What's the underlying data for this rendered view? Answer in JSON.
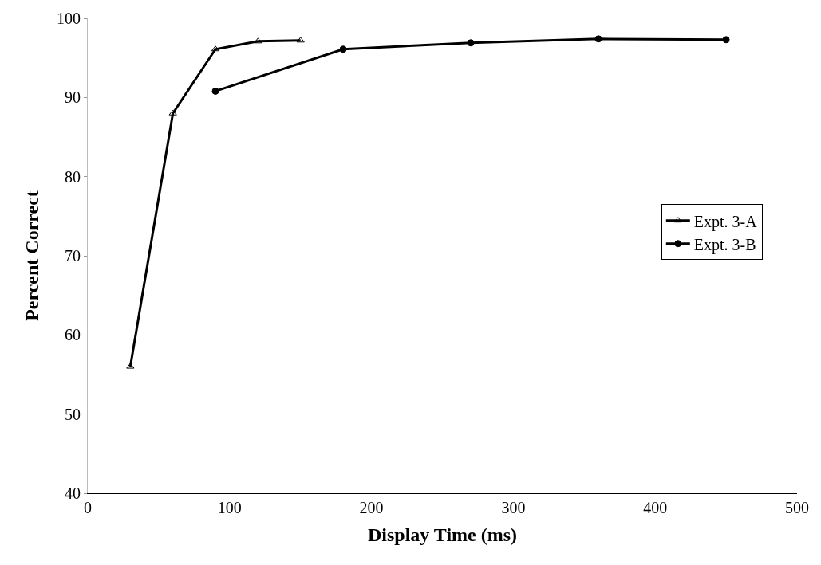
{
  "chart_data": {
    "type": "line",
    "xlabel": "Display Time (ms)",
    "ylabel": "Percent Correct",
    "xlim": [
      0,
      500
    ],
    "xticks": [
      0,
      100,
      200,
      300,
      400,
      500
    ],
    "ylim": [
      40,
      100
    ],
    "yticks": [
      40,
      50,
      60,
      70,
      80,
      90,
      100
    ],
    "legend": "right",
    "series": [
      {
        "name": "Expt. 3-A",
        "color": "#000000",
        "marker": "triangle",
        "x": [
          30,
          60,
          90,
          120,
          150
        ],
        "values": [
          56,
          88,
          96.1,
          97.1,
          97.2
        ]
      },
      {
        "name": "Expt. 3-B",
        "color": "#000000",
        "marker": "circle",
        "x": [
          90,
          180,
          270,
          360,
          450
        ],
        "values": [
          90.8,
          96.1,
          96.9,
          97.4,
          97.3
        ]
      }
    ]
  }
}
